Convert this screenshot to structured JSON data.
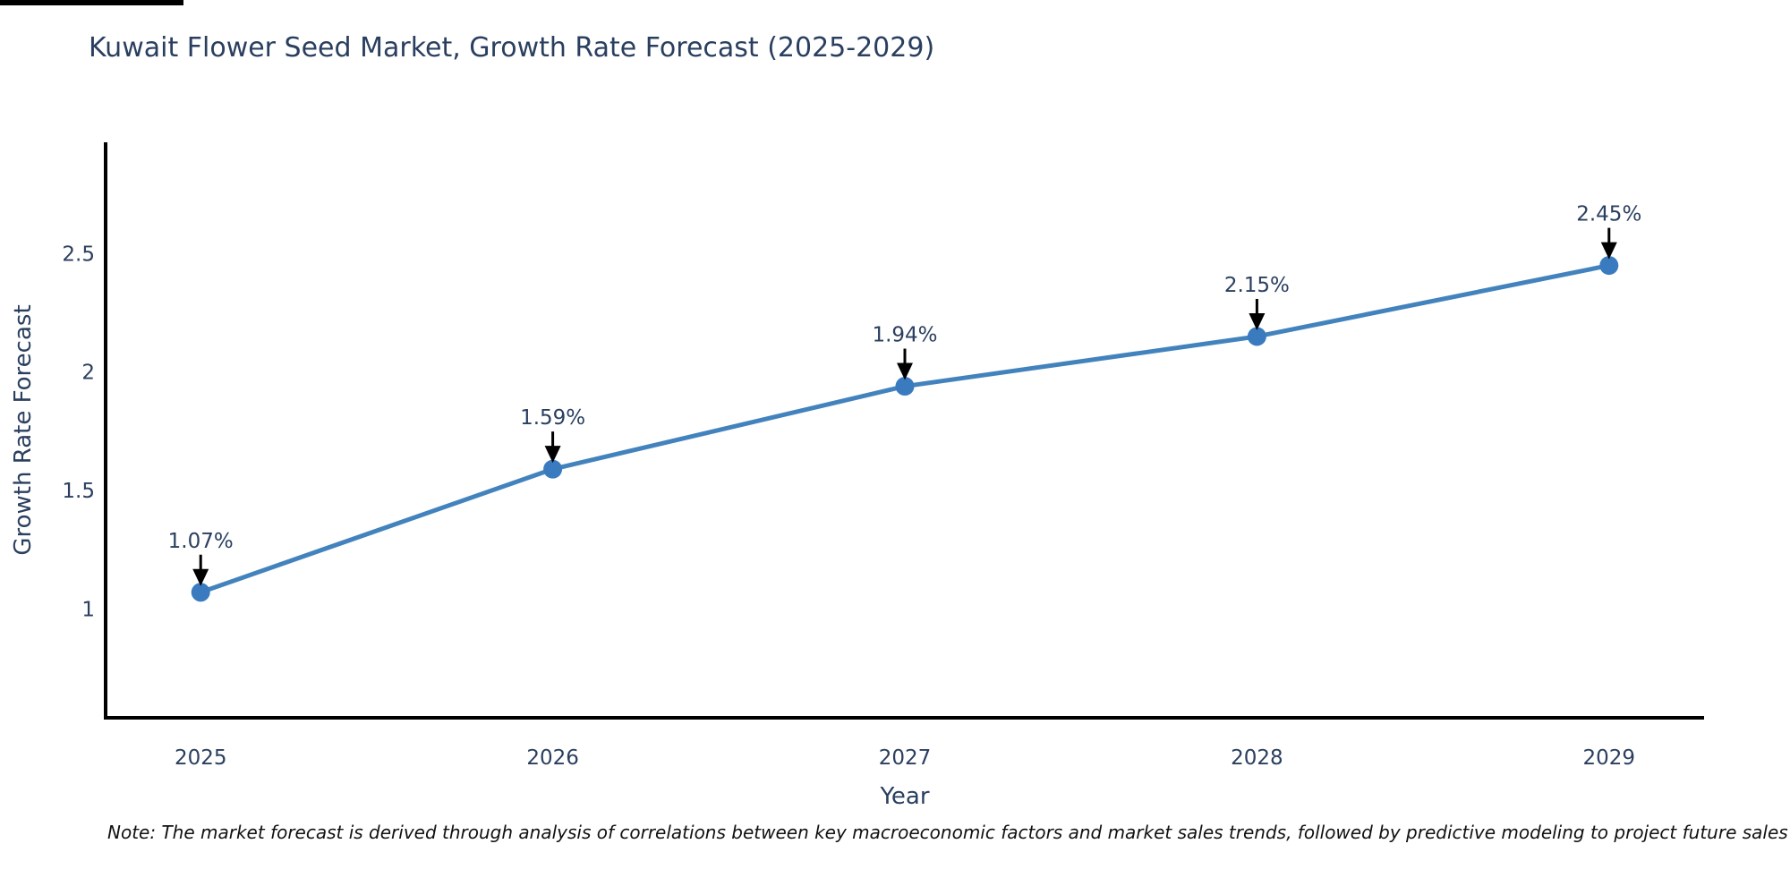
{
  "page": {
    "background_color": "#ffffff",
    "top_left_bar_color": "#000000"
  },
  "note": {
    "text": "Note: The market forecast is derived through analysis of correlations between key macroeconomic factors and market sales trends, followed by predictive modeling to project future sales"
  },
  "chart_data": {
    "type": "line",
    "title": "Kuwait Flower Seed Market, Growth Rate Forecast (2025-2029)",
    "xlabel": "Year",
    "ylabel": "Growth Rate Forecast",
    "x": [
      2025,
      2026,
      2027,
      2028,
      2029
    ],
    "xtick_labels": [
      "2025",
      "2026",
      "2027",
      "2028",
      "2029"
    ],
    "series": [
      {
        "name": "Growth Rate Forecast",
        "values": [
          1.07,
          1.59,
          1.94,
          2.15,
          2.45
        ]
      }
    ],
    "point_labels": [
      "1.07%",
      "1.59%",
      "1.94%",
      "2.15%",
      "2.45%"
    ],
    "yticks": [
      1,
      1.5,
      2,
      2.5
    ],
    "ytick_labels": [
      "1",
      "1.5",
      "2",
      "2.5"
    ],
    "xlim": [
      2024.73,
      2029.27
    ],
    "ylim": [
      0.54,
      2.97
    ],
    "grid": false,
    "legend": "none",
    "annotation_style": "value label with downward black arrow above each marker",
    "colors": {
      "line": "#4383bd",
      "marker": "#3a7bbf",
      "arrow": "#000000",
      "axis": "#000000",
      "text": "#2a3f5f",
      "note_text": "#111111"
    }
  }
}
